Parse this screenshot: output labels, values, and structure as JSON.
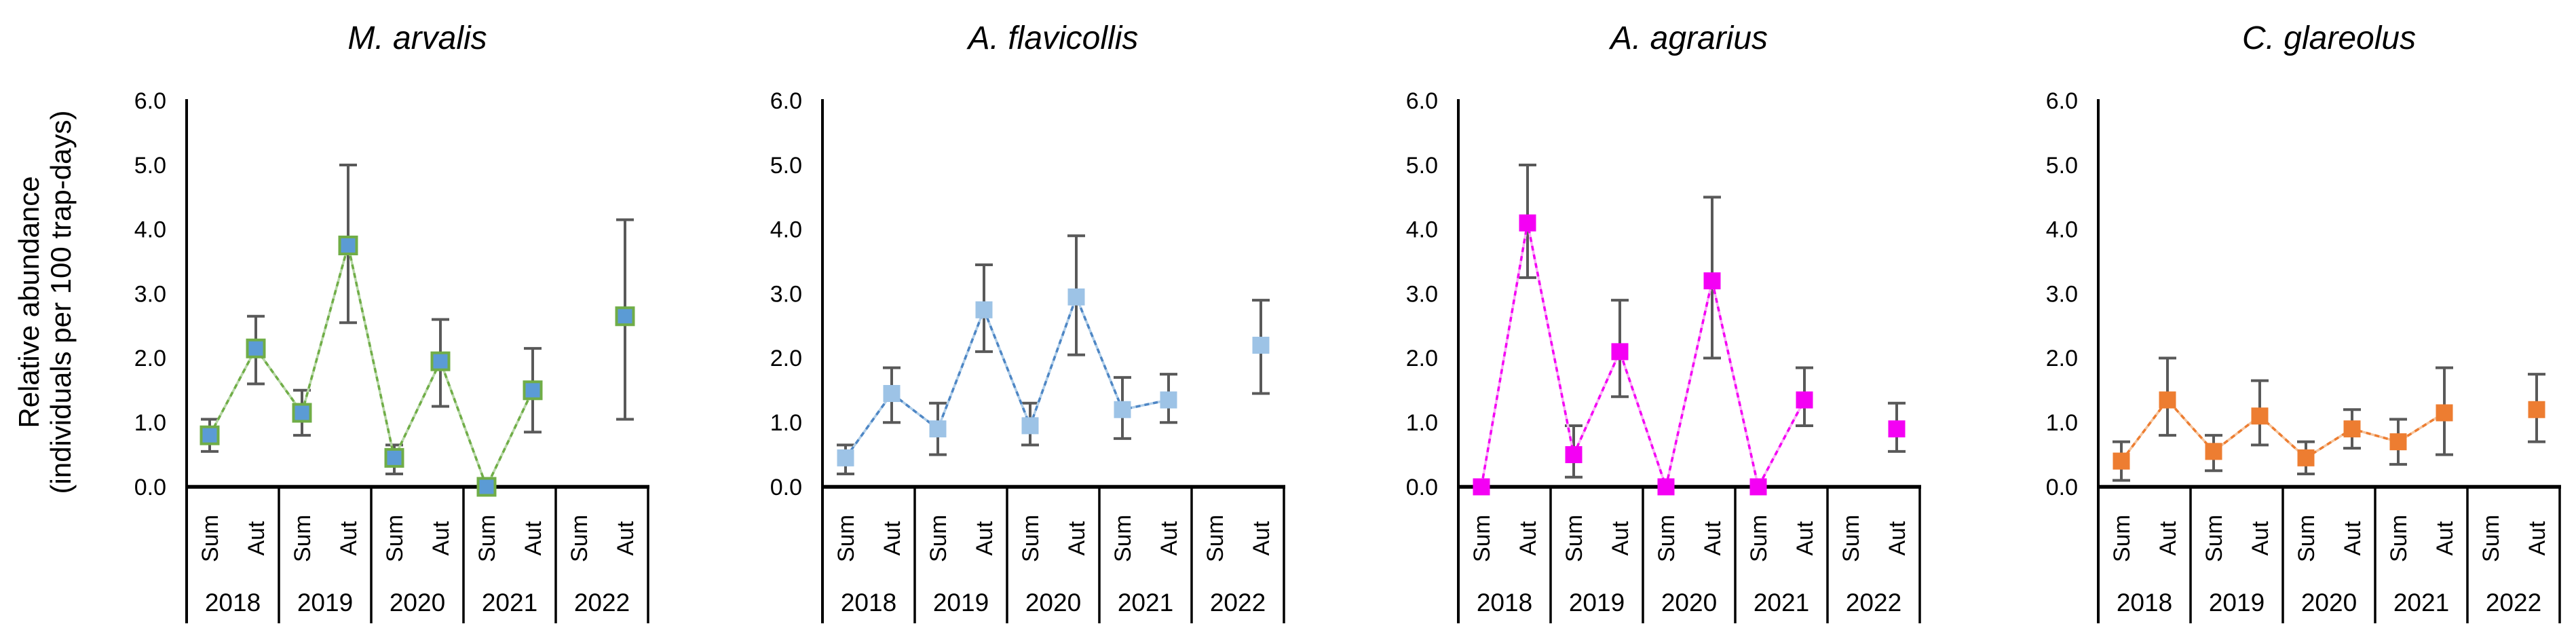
{
  "figure_kind": "small-mammal relative abundance line charts with error bars",
  "y_axis": {
    "title_line1": "Relative abundance",
    "title_line2": "(individuals per 100 trap-days)",
    "ticks": [
      "6.0",
      "5.0",
      "4.0",
      "3.0",
      "2.0",
      "1.0",
      "0.0"
    ],
    "min": 0.0,
    "max": 6.0
  },
  "seasons": [
    "Sum",
    "Aut"
  ],
  "years": [
    "2018",
    "2019",
    "2020",
    "2021",
    "2022"
  ],
  "colors": {
    "error_bar": "#595959",
    "axis": "#000000",
    "background": "#ffffff"
  },
  "chart_data": [
    {
      "type": "line",
      "title": "M. arvalis",
      "categories": [
        "2018 Sum",
        "2018 Aut",
        "2019 Sum",
        "2019 Aut",
        "2020 Sum",
        "2020 Aut",
        "2021 Sum",
        "2021 Aut",
        "2022 Sum",
        "2022 Aut"
      ],
      "values": [
        0.8,
        2.15,
        1.15,
        3.75,
        0.45,
        1.95,
        0.0,
        1.5,
        null,
        2.65
      ],
      "error_low": [
        0.55,
        1.6,
        0.8,
        2.55,
        0.2,
        1.25,
        null,
        0.85,
        null,
        1.05
      ],
      "error_high": [
        1.05,
        2.65,
        1.5,
        5.0,
        0.65,
        2.6,
        null,
        2.15,
        null,
        4.15
      ],
      "ylim": [
        0,
        6
      ],
      "grid": false,
      "legend": false,
      "line_color": "#70AD47",
      "line_tint": "#B6D7A5",
      "marker_fill": "#5B9BD5",
      "marker_border": "#70AD47"
    },
    {
      "type": "line",
      "title": "A. flavicollis",
      "categories": [
        "2018 Sum",
        "2018 Aut",
        "2019 Sum",
        "2019 Aut",
        "2020 Sum",
        "2020 Aut",
        "2021 Sum",
        "2021 Aut",
        "2022 Sum",
        "2022 Aut"
      ],
      "values": [
        0.45,
        1.45,
        0.9,
        2.75,
        0.95,
        2.95,
        1.2,
        1.35,
        null,
        2.2
      ],
      "error_low": [
        0.2,
        1.0,
        0.5,
        2.1,
        0.65,
        2.05,
        0.75,
        1.0,
        null,
        1.45
      ],
      "error_high": [
        0.65,
        1.85,
        1.3,
        3.45,
        1.3,
        3.9,
        1.7,
        1.75,
        null,
        2.9
      ],
      "ylim": [
        0,
        6
      ],
      "grid": false,
      "legend": false,
      "line_color": "#4E86C4",
      "line_tint": "#AECDE9",
      "marker_fill": "#9DC3E6",
      "marker_border": null
    },
    {
      "type": "line",
      "title": "A. agrarius",
      "categories": [
        "2018 Sum",
        "2018 Aut",
        "2019 Sum",
        "2019 Aut",
        "2020 Sum",
        "2020 Aut",
        "2021 Sum",
        "2021 Aut",
        "2022 Sum",
        "2022 Aut"
      ],
      "values": [
        0.0,
        4.1,
        0.5,
        2.1,
        0.0,
        3.2,
        0.0,
        1.35,
        null,
        0.9
      ],
      "error_low": [
        null,
        3.25,
        0.15,
        1.4,
        null,
        2.0,
        null,
        0.95,
        null,
        0.55
      ],
      "error_high": [
        null,
        5.0,
        0.95,
        2.9,
        null,
        4.5,
        null,
        1.85,
        null,
        1.3
      ],
      "ylim": [
        0,
        6
      ],
      "grid": false,
      "legend": false,
      "line_color": "#F400F4",
      "line_tint": "#FBAFF8",
      "marker_fill": "#F400F4",
      "marker_border": null
    },
    {
      "type": "line",
      "title": "C. glareolus",
      "categories": [
        "2018 Sum",
        "2018 Aut",
        "2019 Sum",
        "2019 Aut",
        "2020 Sum",
        "2020 Aut",
        "2021 Sum",
        "2021 Aut",
        "2022 Sum",
        "2022 Aut"
      ],
      "values": [
        0.4,
        1.35,
        0.55,
        1.1,
        0.45,
        0.9,
        0.7,
        1.15,
        null,
        1.2
      ],
      "error_low": [
        0.1,
        0.8,
        0.25,
        0.65,
        0.2,
        0.6,
        0.35,
        0.5,
        null,
        0.7
      ],
      "error_high": [
        0.7,
        2.0,
        0.8,
        1.65,
        0.7,
        1.2,
        1.05,
        1.85,
        null,
        1.75
      ],
      "ylim": [
        0,
        6
      ],
      "grid": false,
      "legend": false,
      "line_color": "#ED7D31",
      "line_tint": "#F6C49C",
      "marker_fill": "#ED7D31",
      "marker_border": null
    }
  ]
}
